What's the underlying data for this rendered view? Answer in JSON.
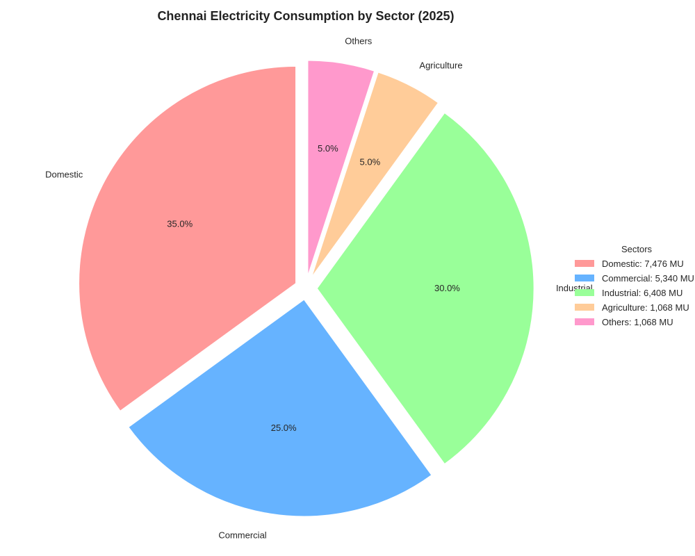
{
  "chart_data": {
    "type": "pie",
    "title": "Chennai Electricity Consumption by Sector (2025)",
    "unit": "MU",
    "legend_title": "Sectors",
    "legend_position": "right",
    "start_angle_deg": 90,
    "direction": "counterclockwise",
    "slices": [
      {
        "label": "Domestic",
        "value": 7476,
        "percent_label": "35.0%",
        "legend_label": "Domestic: 7,476 MU",
        "color": "#ff9999",
        "explode": 0.05
      },
      {
        "label": "Commercial",
        "value": 5340,
        "percent_label": "25.0%",
        "legend_label": "Commercial: 5,340 MU",
        "color": "#66b3ff",
        "explode": 0.05
      },
      {
        "label": "Industrial",
        "value": 6408,
        "percent_label": "30.0%",
        "legend_label": "Industrial: 6,408 MU",
        "color": "#99ff99",
        "explode": 0.05
      },
      {
        "label": "Agriculture",
        "value": 1068,
        "percent_label": "5.0%",
        "legend_label": "Agriculture: 1,068 MU",
        "color": "#ffcc99",
        "explode": 0.05
      },
      {
        "label": "Others",
        "value": 1068,
        "percent_label": "5.0%",
        "legend_label": "Others: 1,068 MU",
        "color": "#ff99cc",
        "explode": 0.05
      }
    ]
  }
}
